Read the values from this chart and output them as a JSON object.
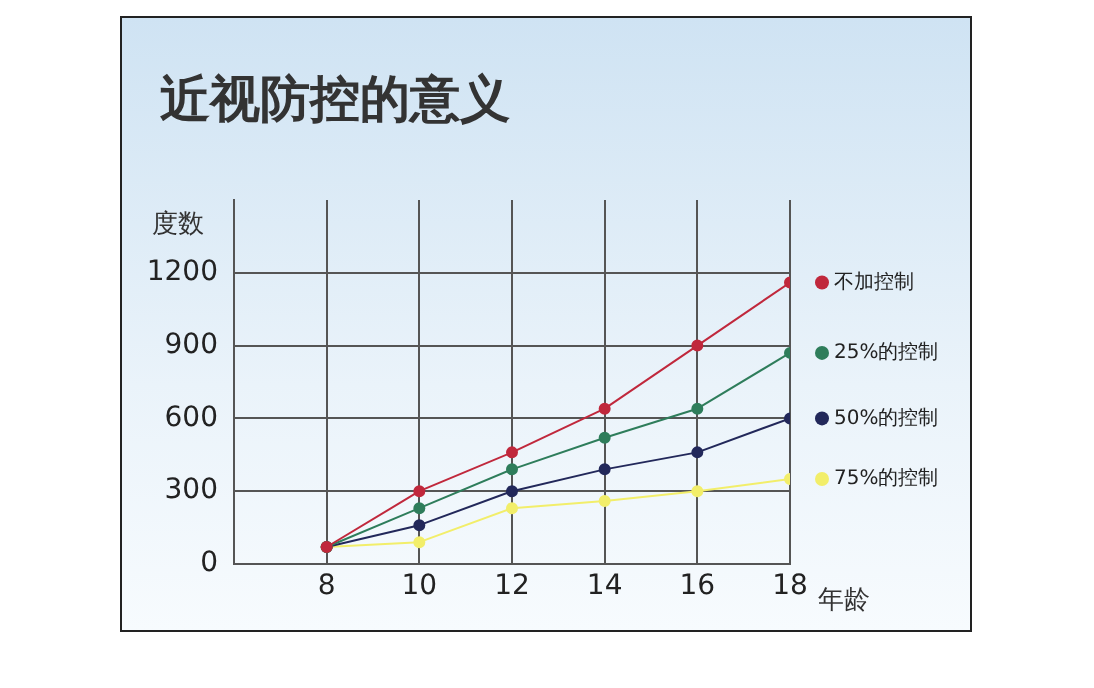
{
  "chart_data": {
    "type": "line",
    "title": "近视防控的意义",
    "xlabel": "年龄",
    "ylabel": "度数",
    "x": [
      8,
      10,
      12,
      14,
      16,
      18
    ],
    "series": [
      {
        "name": "不加控制",
        "color": "#c0283c",
        "values": [
          70,
          300,
          460,
          640,
          900,
          1160
        ]
      },
      {
        "name": "25%的控制",
        "color": "#2e7d5b",
        "values": [
          70,
          230,
          390,
          520,
          640,
          870
        ]
      },
      {
        "name": "50%的控制",
        "color": "#22285a",
        "values": [
          70,
          160,
          300,
          390,
          460,
          600
        ]
      },
      {
        "name": "75%的控制",
        "color": "#f2ee6a",
        "values": [
          70,
          90,
          230,
          260,
          300,
          350
        ]
      }
    ],
    "xlim": [
      6,
      18
    ],
    "xticks": [
      8,
      10,
      12,
      14,
      16,
      18
    ],
    "ylim": [
      0,
      1500
    ],
    "yticks": [
      0,
      300,
      600,
      900,
      1200
    ],
    "grid": true,
    "legend": "right",
    "marker": "circle",
    "line_style": "solid"
  }
}
